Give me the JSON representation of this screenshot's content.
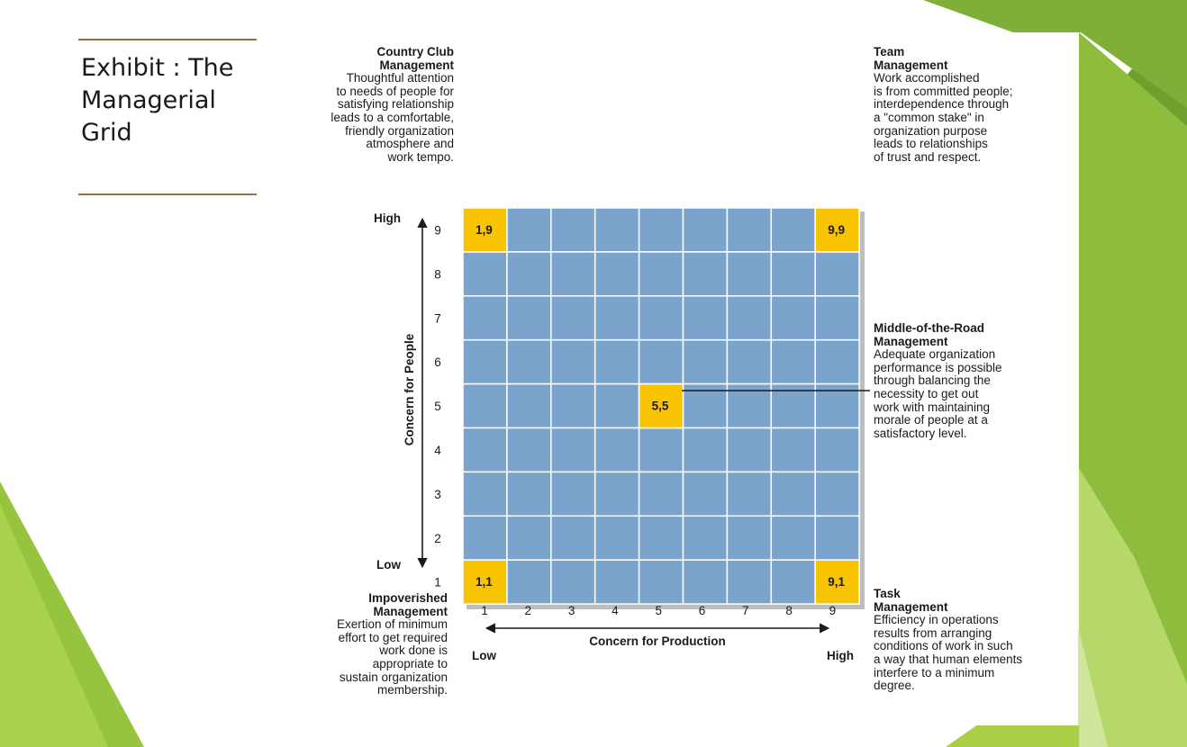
{
  "slide": {
    "title": "Exhibit : The\nManagerial\nGrid"
  },
  "colors": {
    "background_green_light": "#a8cf45",
    "background_green_dark": "#6a9a2d",
    "cell_blue": "#7aa4cb",
    "highlight_yellow": "#f8c300",
    "title_rule": "#9a6a3c"
  },
  "styles": {
    "country_club": {
      "heading": "Country Club\nManagement",
      "body": "Thoughtful attention\nto needs of people for\nsatisfying relationship\nleads to a comfortable,\nfriendly organization\natmosphere and\nwork tempo."
    },
    "team": {
      "heading": "Team\nManagement",
      "body": "Work accomplished\nis from committed people;\ninterdependence through\na \"common stake\" in\norganization purpose\nleads to relationships\nof trust and respect."
    },
    "middle_road": {
      "heading": "Middle-of-the-Road\nManagement",
      "body": "Adequate organization\nperformance is possible\nthrough balancing the\nnecessity to get out\nwork with maintaining\nmorale of people at a\nsatisfactory level."
    },
    "impoverished": {
      "heading": "Impoverished\nManagement",
      "body": "Exertion of minimum\neffort to get required\nwork done is\nappropriate to\nsustain organization\nmembership."
    },
    "task": {
      "heading": "Task\nManagement",
      "body": "Efficiency in operations\nresults from arranging\nconditions of work in such\na way that human elements\ninterfere to a minimum\ndegree."
    }
  },
  "grid": {
    "rows": 9,
    "cols": 9,
    "highlights": [
      {
        "label": "1,9",
        "production": 1,
        "people": 9
      },
      {
        "label": "9,9",
        "production": 9,
        "people": 9
      },
      {
        "label": "5,5",
        "production": 5,
        "people": 5
      },
      {
        "label": "1,1",
        "production": 1,
        "people": 1
      },
      {
        "label": "9,1",
        "production": 9,
        "people": 1
      }
    ]
  },
  "y_axis": {
    "label": "Concern for People",
    "high": "High",
    "low": "Low",
    "ticks": [
      "9",
      "8",
      "7",
      "6",
      "5",
      "4",
      "3",
      "2",
      "1"
    ]
  },
  "x_axis": {
    "label": "Concern for Production",
    "low": "Low",
    "high": "High",
    "ticks": [
      "1",
      "2",
      "3",
      "4",
      "5",
      "6",
      "7",
      "8",
      "9"
    ]
  }
}
